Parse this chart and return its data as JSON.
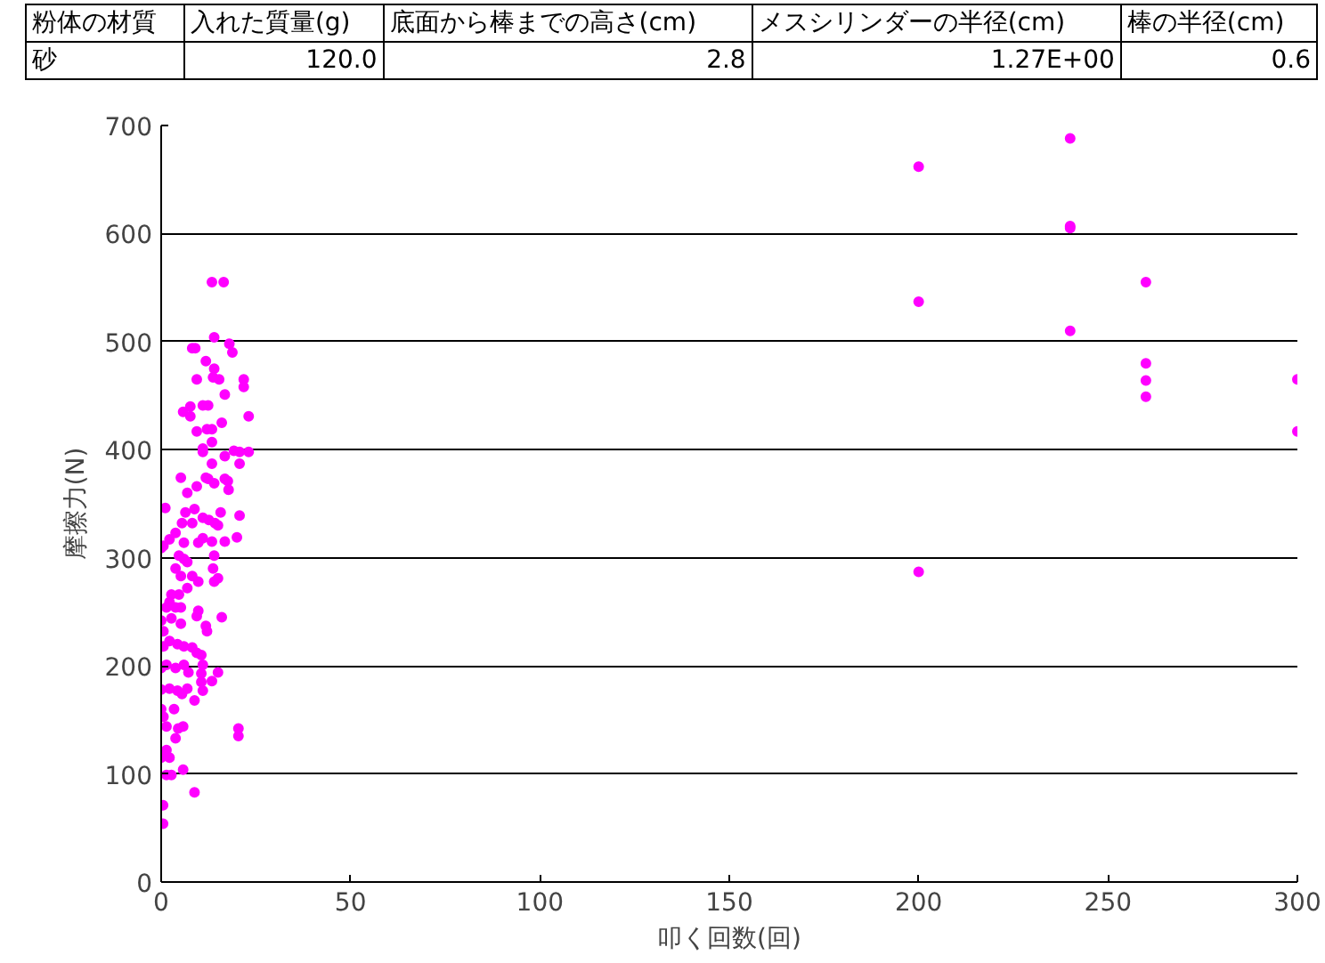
{
  "chart_data": {
    "type": "scatter",
    "xlabel": "叩く回数(回)",
    "ylabel": "摩擦力(N)",
    "annotations": [
      "粉体の材質",
      "入れた質量(g)",
      "底面から棒までの高さ(cm)",
      "メスシリンダーの半径(cm)",
      "棒の半径(cm)",
      "砂",
      "120.0",
      "2.8",
      "1.27E+00",
      "0.6"
    ],
    "xlim": [
      0,
      300
    ],
    "ylim": [
      0,
      700
    ],
    "xticks": [
      0,
      50,
      100,
      150,
      200,
      250,
      300
    ],
    "yticks": [
      0,
      100,
      200,
      300,
      400,
      500,
      600,
      700
    ],
    "grid": "y",
    "marker": "circle",
    "series": [
      {
        "color": "#ff00ff",
        "x": [
          13.4,
          16.5,
          14,
          18,
          18.8,
          8.2,
          9,
          11.8,
          14,
          15.3,
          13.7,
          9.4,
          21.8,
          21.8,
          16.8,
          23.1,
          5.8,
          7.7,
          7.7,
          11,
          12.4,
          9.4,
          12.1,
          13.4,
          16,
          11,
          11,
          13.4,
          16.8,
          19.2,
          20.7,
          23.1,
          20.7,
          13.4,
          5.2,
          11.8,
          12.4,
          14,
          16.8,
          17.6,
          17.8,
          6.9,
          9.4,
          1.1,
          6.4,
          8.8,
          11,
          12.6,
          14.2,
          15,
          15.7,
          20.7,
          20,
          5.5,
          8.2,
          3.8,
          6,
          2.2,
          0.6,
          0,
          9.8,
          11,
          13.4,
          16.8,
          4.7,
          6,
          6.9,
          14,
          3.8,
          5.2,
          8.2,
          9.8,
          13.7,
          14,
          15,
          6.9,
          2.7,
          4.7,
          2.2,
          3.8,
          1.4,
          5.2,
          9.8,
          9.4,
          16,
          0,
          2.7,
          5.2,
          11.8,
          12.1,
          0.6,
          2.2,
          6,
          0.6,
          4.3,
          8.2,
          9.4,
          10.6,
          1.4,
          0,
          3.8,
          6,
          7.2,
          10.6,
          15,
          11,
          0,
          2.2,
          4.3,
          6.9,
          5.5,
          10.6,
          11,
          13.4,
          8.8,
          0,
          3.4,
          0.6,
          1.4,
          4.5,
          5.8,
          3.8,
          20.4,
          20.4,
          1.4,
          0,
          2.2,
          5.8,
          1.4,
          2.7,
          8.8,
          0.5,
          0.5,
          200,
          200,
          200,
          240,
          240,
          240,
          240,
          260,
          260,
          260,
          260,
          300,
          300
        ],
        "values": [
          555,
          555,
          504,
          498,
          490,
          494,
          494,
          482,
          475,
          465,
          467,
          465,
          465,
          458,
          451,
          431,
          435,
          440,
          431,
          441,
          441,
          417,
          419,
          419,
          425,
          401,
          398,
          407,
          394,
          399,
          398,
          398,
          387,
          387,
          374,
          374,
          373,
          369,
          373,
          371,
          363,
          360,
          366,
          346,
          342,
          345,
          337,
          335,
          332,
          330,
          342,
          339,
          319,
          332,
          332,
          323,
          314,
          317,
          311,
          309,
          314,
          318,
          315,
          315,
          302,
          299,
          296,
          302,
          290,
          283,
          283,
          278,
          290,
          278,
          281,
          272,
          266,
          266,
          259,
          254,
          254,
          254,
          251,
          246,
          245,
          242,
          244,
          239,
          237,
          232,
          232,
          223,
          218,
          218,
          220,
          217,
          212,
          210,
          201,
          198,
          198,
          201,
          194,
          193,
          194,
          201,
          178,
          179,
          177,
          179,
          174,
          185,
          177,
          186,
          168,
          160,
          160,
          153,
          144,
          142,
          144,
          133,
          142,
          135,
          122,
          115,
          115,
          104,
          99,
          99,
          83,
          71,
          54,
          662,
          537,
          287,
          688,
          607,
          605,
          510,
          555,
          480,
          464,
          449,
          465,
          417
        ]
      }
    ]
  }
}
